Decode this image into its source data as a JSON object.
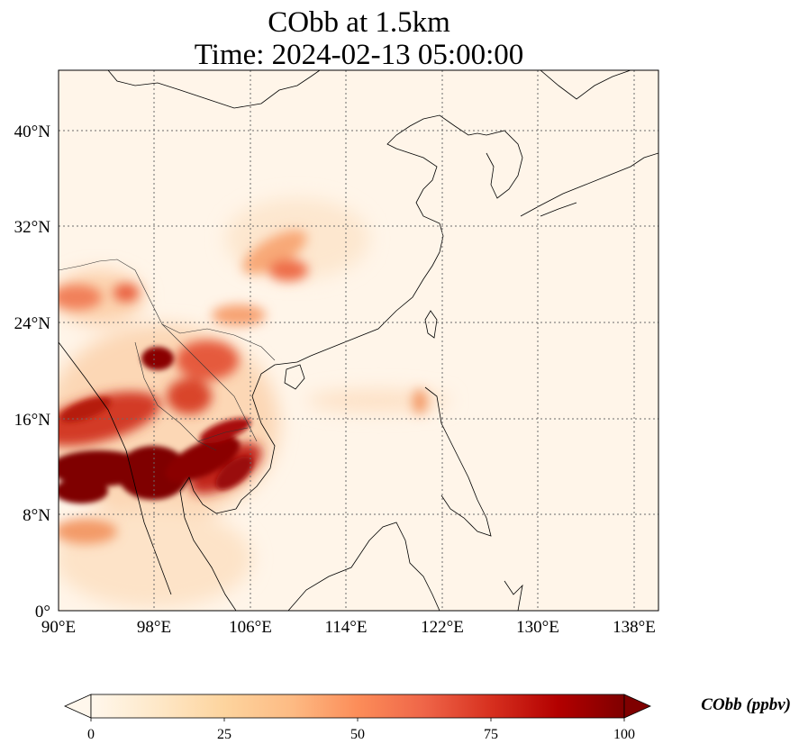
{
  "title": {
    "line1": "CObb at 1.5km",
    "line2": "Time: 2024-02-13 05:00:00"
  },
  "map": {
    "extent": {
      "lon": [
        90,
        140
      ],
      "lat": [
        0,
        45
      ]
    },
    "gridlines": "dotted",
    "lat_ticks": [
      "0°",
      "8°N",
      "16°N",
      "24°N",
      "32°N",
      "40°N"
    ],
    "lon_ticks": [
      "90°E",
      "98°E",
      "106°E",
      "114°E",
      "122°E",
      "130°E",
      "138°E"
    ],
    "lat_values": [
      0,
      8,
      16,
      24,
      32,
      40
    ],
    "lon_values": [
      90,
      98,
      106,
      114,
      122,
      130,
      138
    ]
  },
  "colorbar": {
    "label": "CObb (ppbv)",
    "ticks": [
      "0",
      "25",
      "50",
      "75",
      "100"
    ],
    "min": 0,
    "max": 100,
    "colormap": "OrRd",
    "extend": "both",
    "colors": [
      "#fff7ec",
      "#fee8c8",
      "#fdd49e",
      "#fdbb84",
      "#fc8d59",
      "#ef6548",
      "#d7301f",
      "#b30000",
      "#7f0000"
    ]
  }
}
